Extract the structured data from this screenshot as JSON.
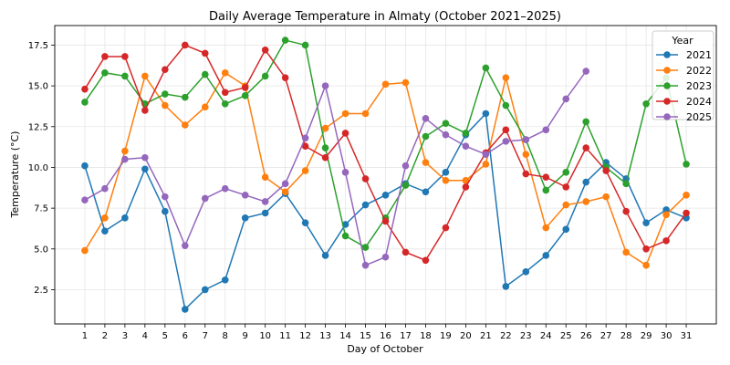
{
  "chart_data": {
    "type": "line",
    "title": "Daily Average Temperature in Almaty (October 2021–2025)",
    "xlabel": "Day of October",
    "ylabel": "Temperature (°C)",
    "xlim": [
      -0.5,
      32.5
    ],
    "ylim": [
      0.4,
      18.7
    ],
    "x_ticks": [
      1,
      2,
      3,
      4,
      5,
      6,
      7,
      8,
      9,
      10,
      11,
      12,
      13,
      14,
      15,
      16,
      17,
      18,
      19,
      20,
      21,
      22,
      23,
      24,
      25,
      26,
      27,
      28,
      29,
      30,
      31
    ],
    "y_ticks": [
      2.5,
      5.0,
      7.5,
      10.0,
      12.5,
      15.0,
      17.5
    ],
    "y_tick_labels": [
      "2.5",
      "5.0",
      "7.5",
      "10.0",
      "12.5",
      "15.0",
      "17.5"
    ],
    "grid": true,
    "legend": {
      "title": "Year",
      "placement": "top-right"
    },
    "series": [
      {
        "name": "2021",
        "color": "#1f77b4",
        "values": [
          10.1,
          6.1,
          6.9,
          9.9,
          7.3,
          1.3,
          2.5,
          3.1,
          6.9,
          7.2,
          8.4,
          6.6,
          4.6,
          6.5,
          7.7,
          8.3,
          9.0,
          8.5,
          9.7,
          12.0,
          13.3,
          2.7,
          3.6,
          4.6,
          6.2,
          9.1,
          10.3,
          9.3,
          6.6,
          7.4,
          6.9
        ]
      },
      {
        "name": "2022",
        "color": "#ff7f0e",
        "values": [
          4.9,
          6.9,
          11.0,
          15.6,
          13.8,
          12.6,
          13.7,
          15.8,
          15.0,
          9.4,
          8.5,
          9.8,
          12.4,
          13.3,
          13.3,
          15.1,
          15.2,
          10.3,
          9.2,
          9.2,
          10.2,
          15.5,
          10.8,
          6.3,
          7.7,
          7.9,
          8.2,
          4.8,
          4.0,
          7.1,
          8.3
        ]
      },
      {
        "name": "2023",
        "color": "#2ca02c",
        "values": [
          14.0,
          15.8,
          15.6,
          13.9,
          14.5,
          14.3,
          15.7,
          13.9,
          14.4,
          15.6,
          17.8,
          17.5,
          11.2,
          5.8,
          5.1,
          6.9,
          8.9,
          11.9,
          12.7,
          12.1,
          16.1,
          13.8,
          11.7,
          8.6,
          9.7,
          12.8,
          10.0,
          9.0,
          13.9,
          15.5,
          10.2
        ]
      },
      {
        "name": "2024",
        "color": "#d62728",
        "values": [
          14.8,
          16.8,
          16.8,
          13.5,
          16.0,
          17.5,
          17.0,
          14.6,
          14.9,
          17.2,
          15.5,
          11.3,
          10.6,
          12.1,
          9.3,
          6.7,
          4.8,
          4.3,
          6.3,
          8.8,
          10.9,
          12.3,
          9.6,
          9.4,
          8.8,
          11.2,
          9.8,
          7.3,
          5.0,
          5.5,
          7.2
        ]
      },
      {
        "name": "2025",
        "color": "#9467bd",
        "values": [
          8.0,
          8.7,
          10.5,
          10.6,
          8.2,
          5.2,
          8.1,
          8.7,
          8.3,
          7.9,
          9.0,
          11.8,
          15.0,
          9.7,
          4.0,
          4.5,
          10.1,
          13.0,
          12.0,
          11.3,
          10.8,
          11.6,
          11.7,
          12.3,
          14.2,
          15.9
        ]
      }
    ]
  }
}
